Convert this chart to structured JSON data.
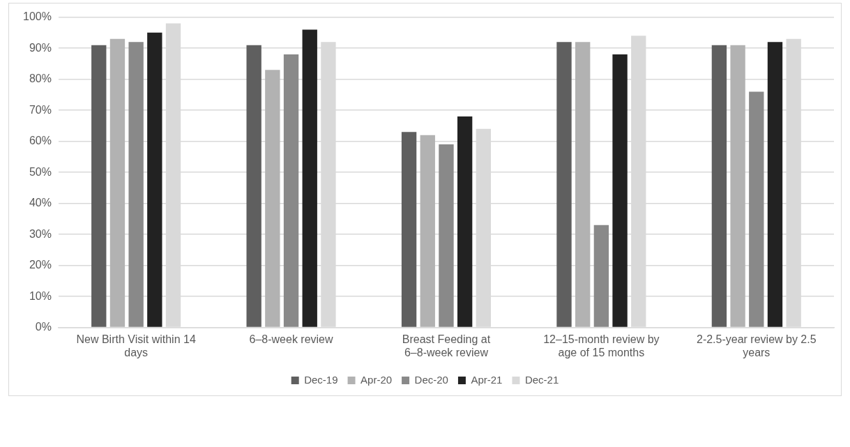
{
  "chart_data": {
    "type": "bar",
    "categories": [
      "New Birth Visit within 14 days",
      "6–8-week review",
      "Breast Feeding at 6–8-week review",
      "12–15-month review by age of 15 months",
      "2-2.5-year review by 2.5 years"
    ],
    "series": [
      {
        "name": "Dec-19",
        "color": "#5f5f5f",
        "values": [
          91,
          91,
          63,
          92,
          91
        ]
      },
      {
        "name": "Apr-20",
        "color": "#b2b2b2",
        "values": [
          93,
          83,
          62,
          92,
          91
        ]
      },
      {
        "name": "Dec-20",
        "color": "#898989",
        "values": [
          92,
          88,
          59,
          33,
          76
        ]
      },
      {
        "name": "Apr-21",
        "color": "#222222",
        "values": [
          95,
          96,
          68,
          88,
          92
        ]
      },
      {
        "name": "Dec-21",
        "color": "#d9d9d9",
        "values": [
          98,
          92,
          64,
          94,
          93
        ]
      }
    ],
    "ylim": [
      0,
      100
    ],
    "yticks": [
      {
        "value": 0,
        "label": "0%"
      },
      {
        "value": 10,
        "label": "10%"
      },
      {
        "value": 20,
        "label": "20%"
      },
      {
        "value": 30,
        "label": "30%"
      },
      {
        "value": 40,
        "label": "40%"
      },
      {
        "value": 50,
        "label": "50%"
      },
      {
        "value": 60,
        "label": "60%"
      },
      {
        "value": 70,
        "label": "70%"
      },
      {
        "value": 80,
        "label": "80%"
      },
      {
        "value": 90,
        "label": "90%"
      },
      {
        "value": 100,
        "label": "100%"
      }
    ],
    "grid": "y",
    "legend": "bottom"
  }
}
